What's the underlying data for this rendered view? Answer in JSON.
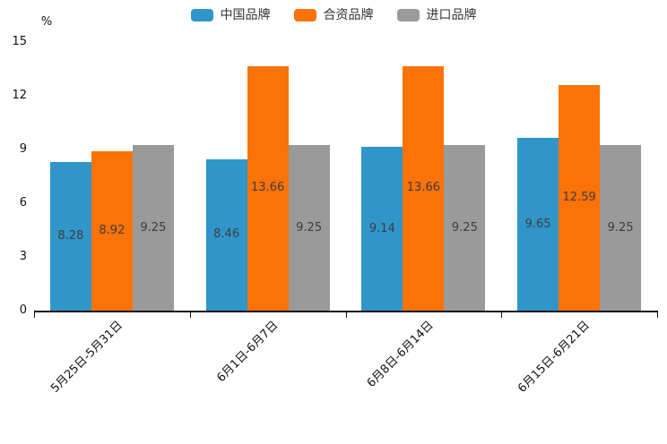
{
  "chart_data": {
    "type": "bar",
    "title": "",
    "unit_label": "%",
    "categories": [
      "5月25日-5月31日",
      "6月1日-6月7日",
      "6月8日-6月14日",
      "6月15日-6月21日"
    ],
    "series": [
      {
        "name": "中国品牌",
        "color": "#3096C9",
        "values": [
          8.28,
          8.46,
          9.14,
          9.65
        ]
      },
      {
        "name": "合资品牌",
        "color": "#FB7208",
        "values": [
          8.92,
          13.66,
          13.66,
          12.59
        ]
      },
      {
        "name": "进口品牌",
        "color": "#9A9A9A",
        "values": [
          9.25,
          9.25,
          9.25,
          9.25
        ]
      }
    ],
    "ylim": [
      0,
      15
    ],
    "yticks": [
      0,
      3,
      6,
      9,
      12,
      15
    ],
    "grid": false,
    "legend_position": "top",
    "value_labels": "inside-center",
    "value_label_decimals": 2,
    "xlabel_rotation": 45,
    "axis_color": "#111111",
    "label_color": "#3d3d3d"
  }
}
